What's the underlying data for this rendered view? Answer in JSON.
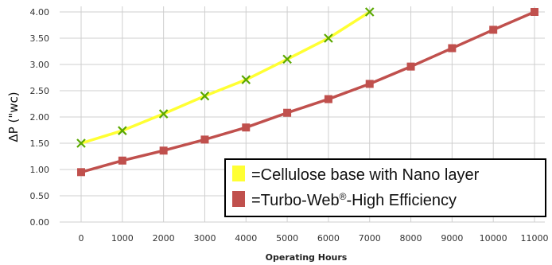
{
  "chart_data": {
    "type": "line",
    "xlabel": "Operating Hours",
    "ylabel": "ΔP (\"wc)",
    "x_ticks": [
      "0",
      "1000",
      "2000",
      "3000",
      "4000",
      "5000",
      "6000",
      "7000",
      "8000",
      "9000",
      "10000",
      "11000"
    ],
    "y_ticks": [
      "0.00",
      "0.50",
      "1.00",
      "1.50",
      "2.00",
      "2.50",
      "3.00",
      "3.50",
      "4.00"
    ],
    "xlim": [
      0,
      11000
    ],
    "ylim": [
      0,
      4
    ],
    "grid": true,
    "legend_position": "bottom-right",
    "series": [
      {
        "name": "=Cellulose base with Nano layer",
        "color": "#ffff33",
        "marker": "x",
        "marker_color": "#5aa800",
        "x": [
          0,
          1000,
          2000,
          3000,
          4000,
          5000,
          6000,
          7000
        ],
        "values": [
          1.5,
          1.74,
          2.06,
          2.4,
          2.71,
          3.1,
          3.5,
          4.0
        ]
      },
      {
        "name": "=Turbo-Web",
        "name_sup": "®",
        "name_rest": "-High Efficiency",
        "color": "#c0504d",
        "marker": "square",
        "marker_color": "#c0504d",
        "x": [
          0,
          1000,
          2000,
          3000,
          4000,
          5000,
          6000,
          7000,
          8000,
          9000,
          10000,
          11000
        ],
        "values": [
          0.95,
          1.17,
          1.36,
          1.57,
          1.8,
          2.08,
          2.34,
          2.63,
          2.96,
          3.31,
          3.66,
          4.0
        ]
      }
    ]
  }
}
